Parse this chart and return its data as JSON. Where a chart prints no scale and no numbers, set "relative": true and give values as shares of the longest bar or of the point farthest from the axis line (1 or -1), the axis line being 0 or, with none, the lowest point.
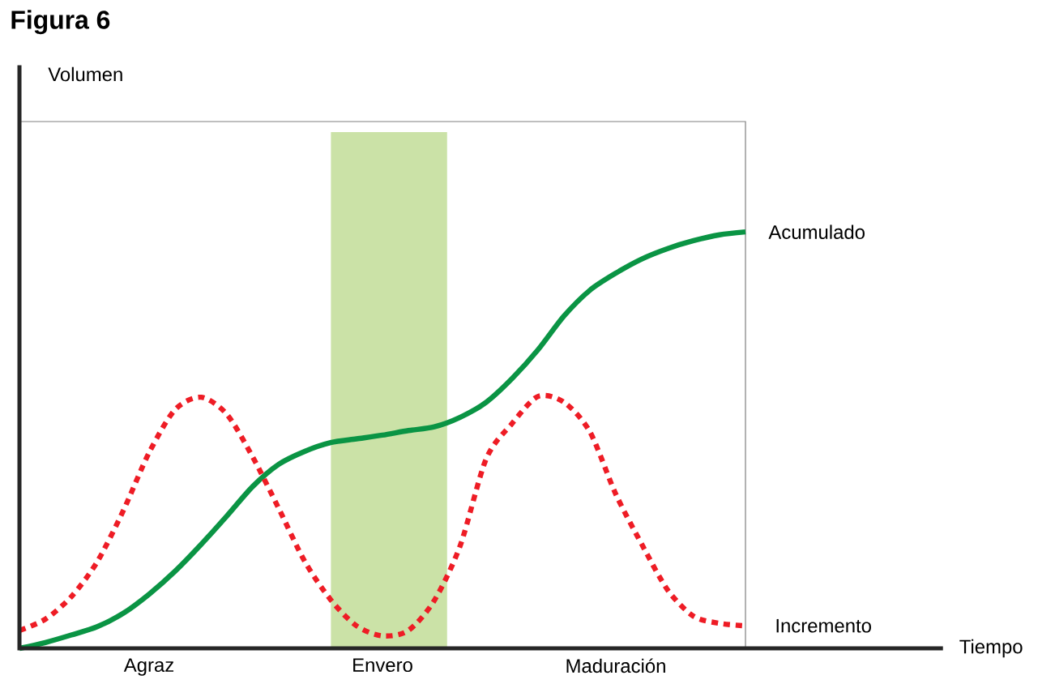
{
  "chart_data": {
    "type": "line",
    "title": "Figura 6",
    "annotations": [
      "Volumen",
      "Tiempo"
    ],
    "relative": true,
    "legend": false,
    "categories": [
      null,
      null,
      null,
      null,
      null,
      "Agraz",
      null,
      null,
      null,
      null,
      null,
      null,
      null,
      null,
      "Envero",
      null,
      null,
      null,
      null,
      null,
      null,
      null,
      null,
      "Maduración",
      null,
      null,
      null,
      null,
      null
    ],
    "series": [
      {
        "name": "Acumulado",
        "color": "#0a9444",
        "line_style": "solid",
        "values": [
          0.0,
          0.014,
          0.032,
          0.052,
          0.084,
          0.13,
          0.185,
          0.249,
          0.318,
          0.389,
          0.442,
          0.473,
          0.494,
          0.503,
          0.512,
          0.523,
          0.532,
          0.555,
          0.591,
          0.648,
          0.717,
          0.798,
          0.86,
          0.901,
          0.935,
          0.96,
          0.979,
          0.993,
          1.0
        ]
      },
      {
        "name": "Incremento",
        "color": "#ee1c25",
        "line_style": "dashed",
        "values": [
          0.043,
          0.07,
          0.124,
          0.208,
          0.33,
          0.47,
          0.573,
          0.603,
          0.562,
          0.459,
          0.336,
          0.209,
          0.117,
          0.054,
          0.03,
          0.043,
          0.115,
          0.247,
          0.455,
          0.54,
          0.605,
          0.591,
          0.52,
          0.37,
          0.25,
          0.14,
          0.077,
          0.06,
          0.054
        ]
      }
    ]
  }
}
